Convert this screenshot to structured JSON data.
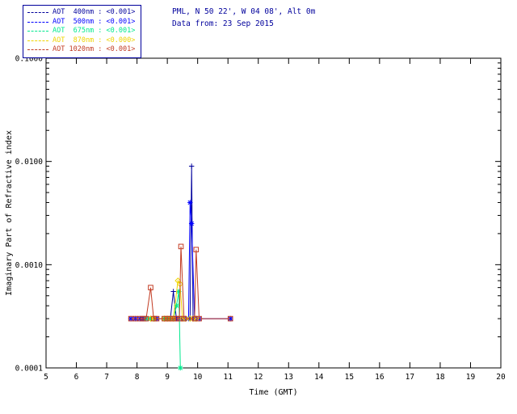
{
  "header": {
    "line1": "PML, N 50 22', W 04 08', Alt 0m",
    "line2": "Data from: 23 Sep 2015",
    "text_color": "#00009C"
  },
  "legend": {
    "border_color": "#00009C",
    "items": [
      {
        "text": "AOT  400nm : <0.001>",
        "color": "#00009C"
      },
      {
        "text": "AOT  500nm : <0.001>",
        "color": "#0000FF"
      },
      {
        "text": "AOT  675nm : <0.001>",
        "color": "#00E98E"
      },
      {
        "text": "AOT  870nm : <0.000>",
        "color": "#EFD400"
      },
      {
        "text": "AOT 1020nm : <0.001>",
        "color": "#C23B22"
      }
    ]
  },
  "chart_data": {
    "type": "line",
    "title": "",
    "xlabel": "Time (GMT)",
    "ylabel": "Imaginary Part of Refractive index",
    "xlim": [
      5,
      20
    ],
    "ylim": [
      0.0001,
      0.1
    ],
    "yscale": "log",
    "grid": false,
    "legend_position": "top-left-outside",
    "xticks": [
      5,
      6,
      7,
      8,
      9,
      10,
      11,
      12,
      13,
      14,
      15,
      16,
      17,
      18,
      19,
      20
    ],
    "ytick_values": [
      0.0001,
      0.001,
      0.01,
      0.1
    ],
    "ytick_labels": [
      "0.0001",
      "0.0010",
      "0.0100",
      "0.1000"
    ],
    "series": [
      {
        "name": "AOT 400nm",
        "color": "#00009C",
        "marker": "plus",
        "points": [
          [
            7.8,
            0.0003
          ],
          [
            7.95,
            0.0003
          ],
          [
            8.1,
            0.0003
          ],
          [
            8.2,
            0.0003
          ],
          [
            8.3,
            0.0003
          ],
          [
            8.45,
            0.0003
          ],
          [
            8.55,
            0.0003
          ],
          [
            8.65,
            0.0003
          ],
          [
            8.9,
            0.0003
          ],
          [
            9.0,
            0.0003
          ],
          [
            9.1,
            0.0003
          ],
          [
            9.2,
            0.00055
          ],
          [
            9.3,
            0.0003
          ],
          [
            9.45,
            0.0003
          ],
          [
            9.55,
            0.0003
          ],
          [
            9.75,
            0.0003
          ],
          [
            9.8,
            0.009
          ],
          [
            9.85,
            0.0003
          ],
          [
            10.05,
            0.0003
          ],
          [
            11.08,
            0.0003
          ]
        ]
      },
      {
        "name": "AOT 500nm",
        "color": "#0000FF",
        "marker": "asterisk",
        "points": [
          [
            7.8,
            0.0003
          ],
          [
            7.95,
            0.0003
          ],
          [
            8.1,
            0.0003
          ],
          [
            8.2,
            0.0003
          ],
          [
            8.3,
            0.0003
          ],
          [
            8.45,
            0.0003
          ],
          [
            8.55,
            0.0003
          ],
          [
            8.65,
            0.0003
          ],
          [
            8.9,
            0.0003
          ],
          [
            9.0,
            0.0003
          ],
          [
            9.1,
            0.0003
          ],
          [
            9.2,
            0.0003
          ],
          [
            9.3,
            0.0003
          ],
          [
            9.45,
            0.0003
          ],
          [
            9.55,
            0.0003
          ],
          [
            9.7,
            0.0003
          ],
          [
            9.75,
            0.004
          ],
          [
            9.8,
            0.0025
          ],
          [
            9.9,
            0.0003
          ],
          [
            10.05,
            0.0003
          ],
          [
            11.08,
            0.0003
          ]
        ]
      },
      {
        "name": "AOT 675nm",
        "color": "#00E98E",
        "marker": "asterisk",
        "points": [
          [
            8.3,
            0.0003
          ],
          [
            8.45,
            0.0003
          ],
          [
            8.55,
            0.0003
          ],
          [
            8.9,
            0.0003
          ],
          [
            9.0,
            0.0003
          ],
          [
            9.1,
            0.0003
          ],
          [
            9.2,
            0.0003
          ],
          [
            9.3,
            0.0004
          ],
          [
            9.38,
            0.00055
          ],
          [
            9.43,
            0.0001
          ]
        ]
      },
      {
        "name": "AOT 870nm",
        "color": "#EFD400",
        "marker": "diamond",
        "points": [
          [
            8.45,
            0.0003
          ],
          [
            8.55,
            0.0003
          ],
          [
            8.9,
            0.0003
          ],
          [
            9.0,
            0.0003
          ],
          [
            9.1,
            0.0003
          ],
          [
            9.2,
            0.0003
          ],
          [
            9.35,
            0.0007
          ],
          [
            9.42,
            0.00065
          ],
          [
            9.5,
            0.0003
          ],
          [
            9.6,
            0.0003
          ],
          [
            9.75,
            0.0003
          ],
          [
            9.85,
            0.0003
          ],
          [
            9.95,
            0.0003
          ]
        ]
      },
      {
        "name": "AOT 1020nm",
        "color": "#C23B22",
        "marker": "square",
        "points": [
          [
            7.8,
            0.0003
          ],
          [
            7.95,
            0.0003
          ],
          [
            8.1,
            0.0003
          ],
          [
            8.2,
            0.0003
          ],
          [
            8.3,
            0.0003
          ],
          [
            8.45,
            0.0006
          ],
          [
            8.55,
            0.0003
          ],
          [
            8.65,
            0.0003
          ],
          [
            8.9,
            0.0003
          ],
          [
            9.0,
            0.0003
          ],
          [
            9.1,
            0.0003
          ],
          [
            9.2,
            0.0003
          ],
          [
            9.3,
            0.0003
          ],
          [
            9.4,
            0.0003
          ],
          [
            9.45,
            0.0015
          ],
          [
            9.55,
            0.0003
          ],
          [
            9.9,
            0.0003
          ],
          [
            9.95,
            0.0014
          ],
          [
            10.05,
            0.0003
          ],
          [
            11.08,
            0.0003
          ]
        ]
      }
    ]
  }
}
